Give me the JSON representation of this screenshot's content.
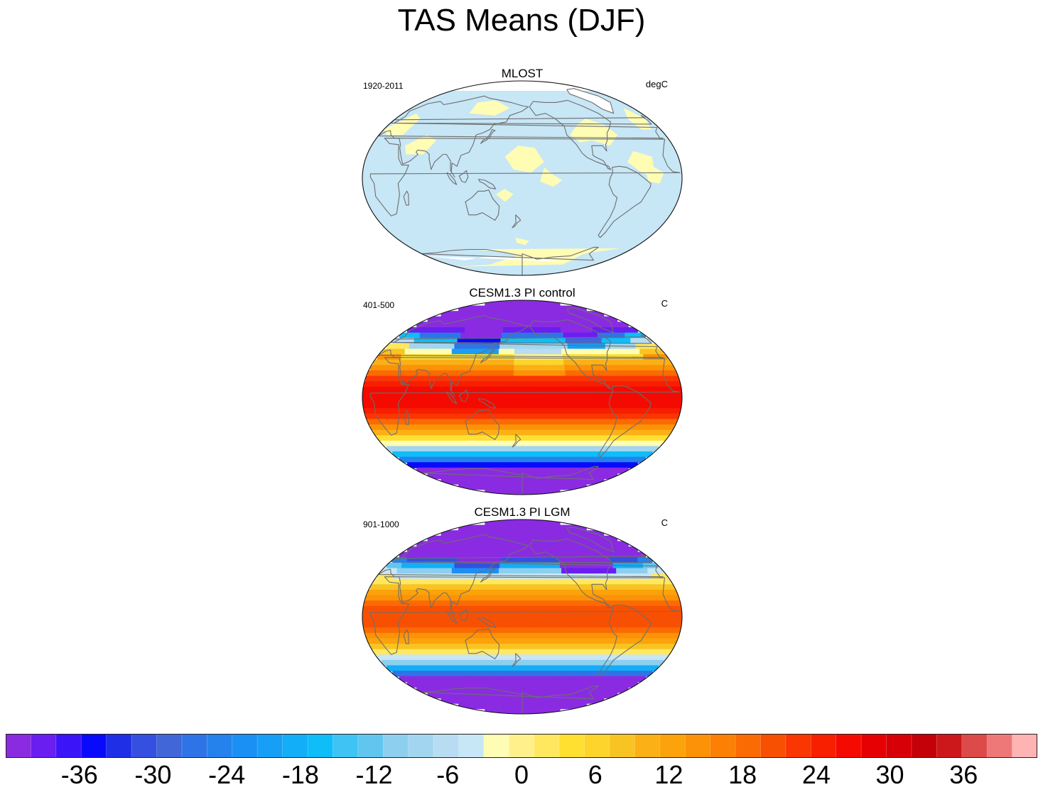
{
  "figure": {
    "title": "TAS Means (DJF)"
  },
  "panels": [
    {
      "title": "MLOST",
      "left_label": "1920-2011",
      "right_label": "degC",
      "pattern": "anomaly_small"
    },
    {
      "title": "CESM1.3 PI control",
      "left_label": "401-500",
      "right_label": "C",
      "pattern": "pi_control"
    },
    {
      "title": "CESM1.3 PI LGM",
      "left_label": "901-1000",
      "right_label": "C",
      "pattern": "lgm"
    }
  ],
  "colorbar": {
    "colors": [
      "#8a2be2",
      "#6a1ef0",
      "#3c14f8",
      "#0a0afa",
      "#1f2fe6",
      "#3550e0",
      "#4066d8",
      "#2f74e6",
      "#2582ec",
      "#1a90f4",
      "#179ff5",
      "#12aef8",
      "#0fbdf8",
      "#3fc3f4",
      "#60c6ef",
      "#8dcfee",
      "#a2d6f0",
      "#b8dcf2",
      "#c7e6f6",
      "#fffcb4",
      "#fff08c",
      "#ffe860",
      "#ffdf30",
      "#fcd42c",
      "#f8c423",
      "#fbb016",
      "#fca20a",
      "#fc9207",
      "#fb8004",
      "#fa6b03",
      "#f85002",
      "#fa3602",
      "#f81e00",
      "#f40a00",
      "#e60004",
      "#d60006",
      "#c40008",
      "#cc181a",
      "#dc4a4a",
      "#ee7878",
      "#ffb4b4"
    ],
    "tick_labels": [
      "-36",
      "-30",
      "-24",
      "-18",
      "-12",
      "-6",
      "0",
      "6",
      "12",
      "18",
      "24",
      "30",
      "36"
    ]
  },
  "chart_data": {
    "type": "heatmap",
    "title": "TAS Means (DJF)",
    "units": [
      "degC",
      "C",
      "C"
    ],
    "colorbar_range": [
      -42,
      42
    ],
    "colorbar_step": 2,
    "panels": [
      {
        "title": "MLOST",
        "period": "1920-2011"
      },
      {
        "title": "CESM1.3 PI control",
        "period": "401-500"
      },
      {
        "title": "CESM1.3 PI LGM",
        "period": "901-1000"
      }
    ]
  }
}
